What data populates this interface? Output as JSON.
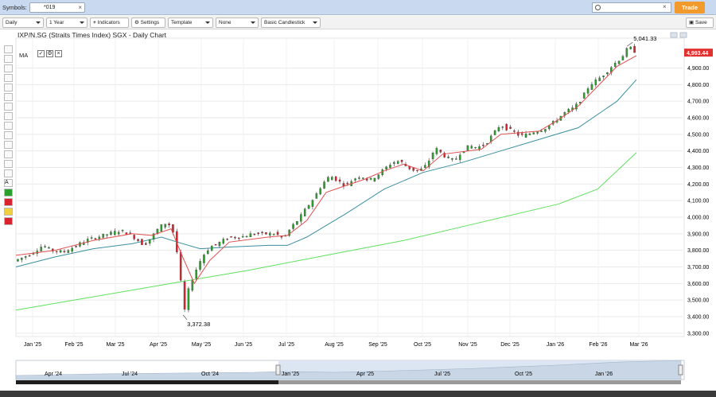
{
  "top_bar": {
    "symbols_label": "Symbols:",
    "symbol_value": "*019",
    "symbol_clear": "×",
    "search_clear": "×",
    "trade_label": "Trade"
  },
  "toolbar": {
    "interval": "Daily",
    "range": "1 Year",
    "indicators": "Indicators",
    "settings": "Settings",
    "template": "Template",
    "overlay": "None",
    "chart_style": "Basic Candlestick",
    "save": "Save"
  },
  "chart": {
    "title": "IXP/N.SG (Straits Times Index) SGX - Daily Chart",
    "ma_label": "MA",
    "last_price": "4,993.44",
    "high_label": "5,041.33",
    "low_label": "3,372.38"
  },
  "icons": {
    "add": "plus-icon",
    "settings": "gear-icon",
    "save": "save-icon",
    "search": "search-icon"
  },
  "colors": {
    "up": "#2ca02c",
    "down": "#d9232e",
    "ma_short": "#e05050",
    "ma_mid": "#3a8fa0",
    "ma_long": "#5fe05f",
    "trade": "#f39a2c",
    "price_tag": "#e03030"
  },
  "chart_data": {
    "type": "candlestick",
    "y_ticks": [
      "3,300.00",
      "3,400.00",
      "3,500.00",
      "3,600.00",
      "3,700.00",
      "3,800.00",
      "3,900.00",
      "4,000.00",
      "4,100.00",
      "4,200.00",
      "4,300.00",
      "4,400.00",
      "4,500.00",
      "4,600.00",
      "4,700.00",
      "4,800.00",
      "4,900.00"
    ],
    "ylim": [
      3280,
      5080
    ],
    "x_ticks": [
      "Jan '25",
      "Feb '25",
      "Mar '25",
      "Apr '25",
      "May '25",
      "Jun '25",
      "Jul '25",
      "Aug '25",
      "Sep '25",
      "Oct '25",
      "Nov '25",
      "Dec '25",
      "Jan '26",
      "Feb '26",
      "Mar '26"
    ],
    "close_path": [
      [
        0,
        3740
      ],
      [
        8,
        3780
      ],
      [
        14,
        3830
      ],
      [
        18,
        3800
      ],
      [
        24,
        3790
      ],
      [
        30,
        3820
      ],
      [
        36,
        3860
      ],
      [
        42,
        3880
      ],
      [
        48,
        3900
      ],
      [
        54,
        3920
      ],
      [
        58,
        3900
      ],
      [
        62,
        3870
      ],
      [
        66,
        3830
      ],
      [
        70,
        3880
      ],
      [
        74,
        3940
      ],
      [
        78,
        3970
      ],
      [
        80,
        3940
      ],
      [
        82,
        3880
      ],
      [
        84,
        3700
      ],
      [
        86,
        3520
      ],
      [
        87,
        3440
      ],
      [
        89,
        3560
      ],
      [
        92,
        3660
      ],
      [
        96,
        3760
      ],
      [
        100,
        3820
      ],
      [
        104,
        3840
      ],
      [
        110,
        3880
      ],
      [
        116,
        3880
      ],
      [
        122,
        3900
      ],
      [
        128,
        3900
      ],
      [
        134,
        3900
      ],
      [
        138,
        3870
      ],
      [
        142,
        3940
      ],
      [
        146,
        3990
      ],
      [
        150,
        4060
      ],
      [
        154,
        4120
      ],
      [
        158,
        4200
      ],
      [
        162,
        4250
      ],
      [
        166,
        4220
      ],
      [
        170,
        4190
      ],
      [
        174,
        4230
      ],
      [
        178,
        4250
      ],
      [
        182,
        4220
      ],
      [
        186,
        4250
      ],
      [
        190,
        4290
      ],
      [
        194,
        4330
      ],
      [
        198,
        4340
      ],
      [
        202,
        4300
      ],
      [
        206,
        4280
      ],
      [
        210,
        4290
      ],
      [
        214,
        4360
      ],
      [
        216,
        4420
      ],
      [
        218,
        4400
      ],
      [
        222,
        4360
      ],
      [
        226,
        4340
      ],
      [
        230,
        4400
      ],
      [
        234,
        4430
      ],
      [
        238,
        4420
      ],
      [
        242,
        4440
      ],
      [
        246,
        4500
      ],
      [
        250,
        4560
      ],
      [
        252,
        4540
      ],
      [
        256,
        4520
      ],
      [
        260,
        4490
      ],
      [
        264,
        4500
      ],
      [
        268,
        4520
      ],
      [
        272,
        4530
      ],
      [
        276,
        4560
      ],
      [
        280,
        4600
      ],
      [
        284,
        4640
      ],
      [
        288,
        4660
      ],
      [
        292,
        4720
      ],
      [
        296,
        4800
      ],
      [
        300,
        4830
      ],
      [
        304,
        4870
      ],
      [
        308,
        4920
      ],
      [
        312,
        4960
      ],
      [
        314,
        4990
      ],
      [
        316,
        5030
      ],
      [
        318,
        5010
      ],
      [
        320,
        4993
      ]
    ],
    "ma_short": [
      [
        0,
        3770
      ],
      [
        20,
        3800
      ],
      [
        40,
        3860
      ],
      [
        60,
        3900
      ],
      [
        70,
        3890
      ],
      [
        80,
        3930
      ],
      [
        86,
        3760
      ],
      [
        92,
        3600
      ],
      [
        100,
        3740
      ],
      [
        110,
        3850
      ],
      [
        130,
        3880
      ],
      [
        140,
        3890
      ],
      [
        150,
        3980
      ],
      [
        160,
        4150
      ],
      [
        170,
        4190
      ],
      [
        180,
        4230
      ],
      [
        190,
        4280
      ],
      [
        200,
        4320
      ],
      [
        210,
        4280
      ],
      [
        220,
        4380
      ],
      [
        240,
        4410
      ],
      [
        250,
        4500
      ],
      [
        260,
        4510
      ],
      [
        270,
        4520
      ],
      [
        280,
        4590
      ],
      [
        290,
        4670
      ],
      [
        300,
        4790
      ],
      [
        310,
        4910
      ],
      [
        320,
        4975
      ]
    ],
    "ma_mid": [
      [
        0,
        3700
      ],
      [
        20,
        3760
      ],
      [
        40,
        3810
      ],
      [
        60,
        3840
      ],
      [
        75,
        3880
      ],
      [
        86,
        3840
      ],
      [
        95,
        3810
      ],
      [
        110,
        3820
      ],
      [
        130,
        3830
      ],
      [
        140,
        3830
      ],
      [
        150,
        3880
      ],
      [
        170,
        4020
      ],
      [
        190,
        4170
      ],
      [
        210,
        4270
      ],
      [
        230,
        4330
      ],
      [
        250,
        4400
      ],
      [
        270,
        4470
      ],
      [
        290,
        4540
      ],
      [
        310,
        4700
      ],
      [
        320,
        4830
      ]
    ],
    "ma_long": [
      [
        0,
        3440
      ],
      [
        40,
        3520
      ],
      [
        80,
        3600
      ],
      [
        120,
        3680
      ],
      [
        160,
        3770
      ],
      [
        200,
        3860
      ],
      [
        240,
        3970
      ],
      [
        280,
        4080
      ],
      [
        300,
        4170
      ],
      [
        320,
        4390
      ]
    ],
    "navigator_x_ticks": [
      "Apr '24",
      "Jul '24",
      "Oct '24",
      "Jan '25",
      "Apr '25",
      "Jul '25",
      "Oct '25",
      "Jan '26"
    ]
  }
}
